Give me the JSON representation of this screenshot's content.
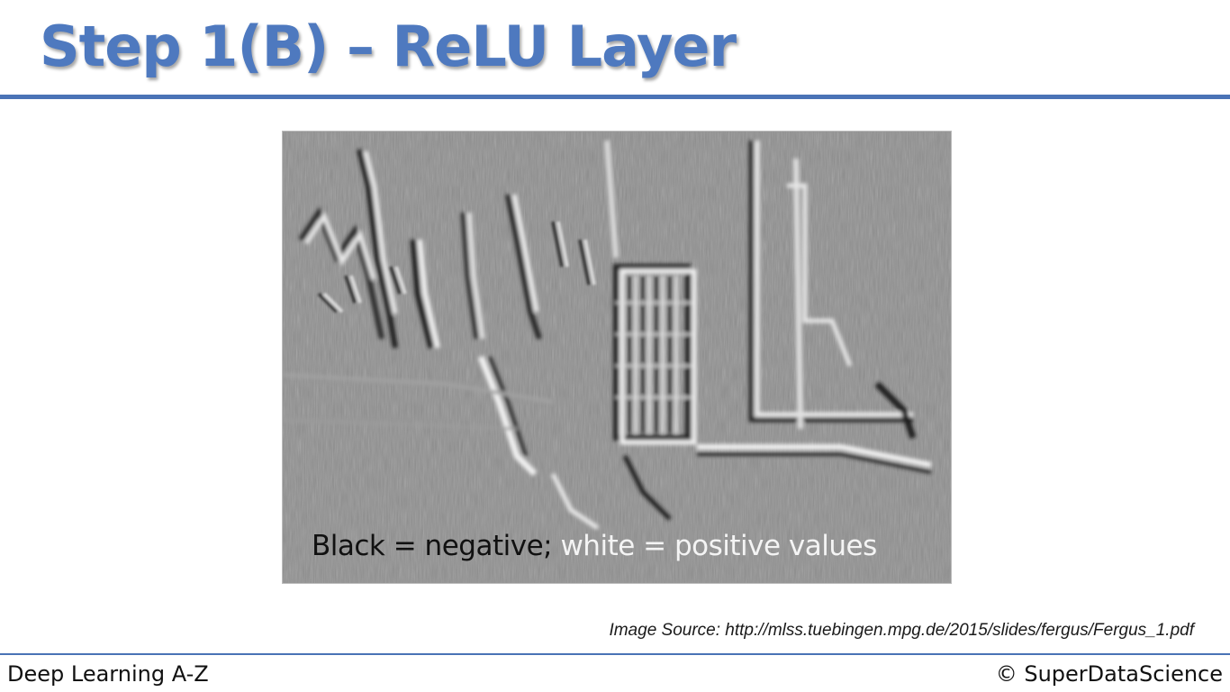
{
  "slide": {
    "title": "Step 1(B) – ReLU Layer",
    "figure_caption_dark": "Black = negative;",
    "figure_caption_light": "white = positive values",
    "image_source": "Image Source: http://mlss.tuebingen.mpg.de/2015/slides/fergus/Fergus_1.pdf",
    "footer_left": "Deep Learning A-Z",
    "footer_right": "© SuperDataScience"
  },
  "colors": {
    "accent": "#4a73b6",
    "title": "#4e79bf",
    "figure_background": "#8f8f8f"
  }
}
